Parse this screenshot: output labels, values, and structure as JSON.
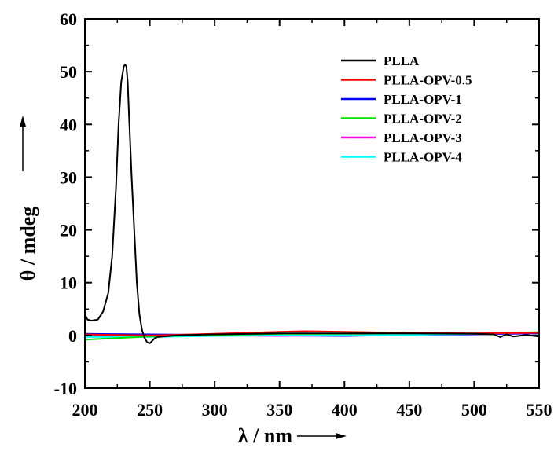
{
  "chart_data": {
    "type": "line",
    "xlabel": "λ / nm",
    "ylabel": "θ / mdeg",
    "xlim": [
      200,
      550
    ],
    "ylim": [
      -10,
      60
    ],
    "x_ticks": [
      200,
      250,
      300,
      350,
      400,
      450,
      500,
      550
    ],
    "y_ticks": [
      -10,
      0,
      10,
      20,
      30,
      40,
      50,
      60
    ],
    "legend_position": "top-right",
    "grid": false,
    "series": [
      {
        "name": "PLLA",
        "color": "#000000",
        "x": [
          200,
          202,
          205,
          210,
          214,
          218,
          221,
          224,
          226,
          228,
          230,
          231,
          232,
          233,
          234,
          236,
          238,
          240,
          242,
          244,
          246,
          248,
          250,
          252,
          254,
          256,
          260,
          270,
          280,
          300,
          350,
          400,
          450,
          500,
          515,
          520,
          525,
          530,
          540,
          550
        ],
        "y": [
          4,
          3,
          2.8,
          3,
          4.5,
          8,
          15,
          28,
          40,
          48,
          51,
          51.3,
          51,
          48,
          42,
          30,
          20,
          10,
          4,
          1,
          -0.5,
          -1.3,
          -1.5,
          -1.0,
          -0.5,
          -0.3,
          -0.2,
          0,
          0.1,
          0.2,
          0.4,
          0.4,
          0.4,
          0.3,
          0.2,
          -0.3,
          0.2,
          -0.2,
          0.1,
          -0.2
        ]
      },
      {
        "name": "PLLA-OPV-0.5",
        "color": "#ff0000",
        "x": [
          200,
          250,
          300,
          350,
          370,
          400,
          450,
          500,
          550
        ],
        "y": [
          0.2,
          0,
          0.3,
          0.7,
          0.8,
          0.7,
          0.5,
          0.4,
          0.5
        ]
      },
      {
        "name": "PLLA-OPV-1",
        "color": "#0000ff",
        "x": [
          200,
          250,
          300,
          350,
          400,
          450,
          500,
          550
        ],
        "y": [
          0.3,
          0.2,
          0.1,
          0,
          -0.1,
          0.1,
          0.2,
          0.4
        ]
      },
      {
        "name": "PLLA-OPV-2",
        "color": "#00e000",
        "x": [
          200,
          250,
          300,
          350,
          400,
          450,
          500,
          550
        ],
        "y": [
          -0.8,
          -0.2,
          0.1,
          0.3,
          0.3,
          0.4,
          0.4,
          0.6
        ]
      },
      {
        "name": "PLLA-OPV-3",
        "color": "#ff00ff",
        "x": [
          200,
          250,
          300,
          350,
          400,
          450,
          500,
          550
        ],
        "y": [
          0.1,
          0,
          0,
          -0.1,
          0,
          0.1,
          0.3,
          0.5
        ]
      },
      {
        "name": "PLLA-OPV-4",
        "color": "#00ffff",
        "x": [
          200,
          250,
          300,
          350,
          400,
          450,
          500,
          550
        ],
        "y": [
          -0.3,
          -0.3,
          -0.1,
          0,
          0,
          0.1,
          0.3,
          0.6
        ]
      }
    ]
  }
}
